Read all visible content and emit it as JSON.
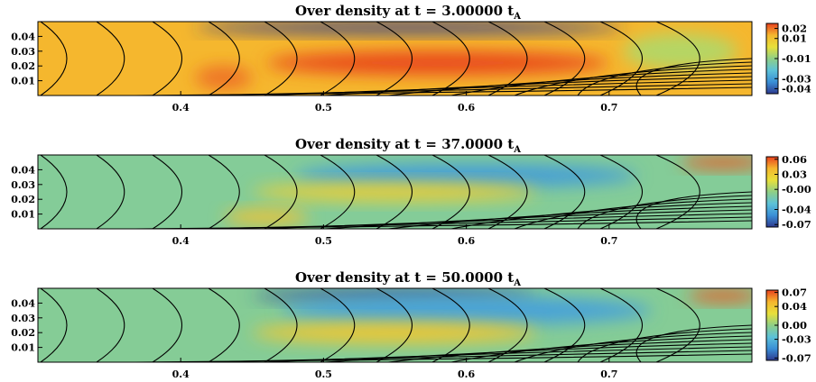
{
  "colorscale": [
    "#2e3a8f",
    "#3a8fd6",
    "#5cc2d8",
    "#8fcf86",
    "#e8e03a",
    "#f5b62e",
    "#e8401e"
  ],
  "chart_data": [
    {
      "type": "heatmap",
      "title": "Over density at t = 3.00000 t",
      "title_subscript": "A",
      "x_ticks": [
        "0.4",
        "0.5",
        "0.6",
        "0.7"
      ],
      "x_tick_values": [
        0.4,
        0.5,
        0.6,
        0.7
      ],
      "y_ticks": [
        "0.04",
        "0.03",
        "0.02",
        "0.01"
      ],
      "y_tick_values": [
        0.04,
        0.03,
        0.02,
        0.01
      ],
      "xlim": [
        0.3,
        0.8
      ],
      "ylim": [
        0.0,
        0.05
      ],
      "colorbar_ticks": [
        "0.02",
        "0.01",
        "-0.01",
        "-0.03",
        "-0.04"
      ],
      "colorbar_values": [
        0.02,
        0.01,
        -0.01,
        -0.03,
        -0.04
      ],
      "colorbar_range": [
        -0.045,
        0.025
      ],
      "background_value": 0.013,
      "features": [
        {
          "x": 0.58,
          "y": 0.022,
          "sx": 0.12,
          "sy": 0.008,
          "v": 0.024
        },
        {
          "x": 0.43,
          "y": 0.012,
          "sx": 0.02,
          "sy": 0.008,
          "v": 0.02
        },
        {
          "x": 0.56,
          "y": 0.046,
          "sx": 0.15,
          "sy": 0.004,
          "v": -0.045
        },
        {
          "x": 0.75,
          "y": 0.03,
          "sx": 0.04,
          "sy": 0.012,
          "v": -0.005
        }
      ]
    },
    {
      "type": "heatmap",
      "title": "Over density at t = 37.0000 t",
      "title_subscript": "A",
      "x_ticks": [
        "0.4",
        "0.5",
        "0.6",
        "0.7"
      ],
      "x_tick_values": [
        0.4,
        0.5,
        0.6,
        0.7
      ],
      "y_ticks": [
        "0.04",
        "0.03",
        "0.02",
        "0.01"
      ],
      "y_tick_values": [
        0.04,
        0.03,
        0.02,
        0.01
      ],
      "xlim": [
        0.3,
        0.8
      ],
      "ylim": [
        0.0,
        0.05
      ],
      "colorbar_ticks": [
        "0.06",
        "0.03",
        "-0.00",
        "-0.04",
        "-0.07"
      ],
      "colorbar_values": [
        0.06,
        0.03,
        0.0,
        -0.04,
        -0.07
      ],
      "colorbar_range": [
        -0.075,
        0.065
      ],
      "background_value": -0.01,
      "features": [
        {
          "x": 0.6,
          "y": 0.036,
          "sx": 0.12,
          "sy": 0.008,
          "v": -0.045
        },
        {
          "x": 0.55,
          "y": 0.025,
          "sx": 0.1,
          "sy": 0.006,
          "v": 0.028
        },
        {
          "x": 0.46,
          "y": 0.008,
          "sx": 0.03,
          "sy": 0.005,
          "v": 0.035
        },
        {
          "x": 0.78,
          "y": 0.045,
          "sx": 0.03,
          "sy": 0.004,
          "v": 0.06
        }
      ]
    },
    {
      "type": "heatmap",
      "title": "Over density at t = 50.0000 t",
      "title_subscript": "A",
      "x_ticks": [
        "0.4",
        "0.5",
        "0.6",
        "0.7"
      ],
      "x_tick_values": [
        0.4,
        0.5,
        0.6,
        0.7
      ],
      "y_ticks": [
        "0.04",
        "0.03",
        "0.02",
        "0.01"
      ],
      "y_tick_values": [
        0.04,
        0.03,
        0.02,
        0.01
      ],
      "xlim": [
        0.3,
        0.8
      ],
      "ylim": [
        0.0,
        0.05
      ],
      "colorbar_ticks": [
        "0.07",
        "0.04",
        "0.00",
        "-0.03",
        "-0.07"
      ],
      "colorbar_values": [
        0.07,
        0.04,
        0.0,
        -0.03,
        -0.07
      ],
      "colorbar_range": [
        -0.075,
        0.075
      ],
      "background_value": -0.005,
      "features": [
        {
          "x": 0.55,
          "y": 0.045,
          "sx": 0.1,
          "sy": 0.004,
          "v": -0.07
        },
        {
          "x": 0.6,
          "y": 0.035,
          "sx": 0.13,
          "sy": 0.01,
          "v": -0.04
        },
        {
          "x": 0.55,
          "y": 0.02,
          "sx": 0.1,
          "sy": 0.007,
          "v": 0.04
        },
        {
          "x": 0.78,
          "y": 0.045,
          "sx": 0.025,
          "sy": 0.004,
          "v": 0.07
        }
      ]
    }
  ]
}
